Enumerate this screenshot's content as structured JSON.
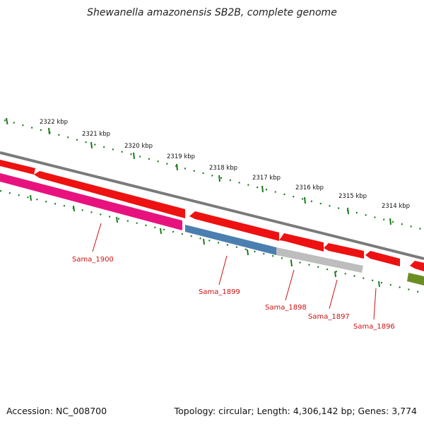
{
  "title": "Shewanella amazonensis SB2B, complete genome",
  "footer": {
    "accession": "Accession: NC_008700",
    "summary": "Topology: circular; Length: 4,306,142 bp; Genes: 3,774"
  },
  "axis_labels": [
    "2322 kbp",
    "2321 kbp",
    "2320 kbp",
    "2319 kbp",
    "2318 kbp",
    "2317 kbp",
    "2316 kbp",
    "2315 kbp",
    "2314 kbp"
  ],
  "genes": [
    {
      "label": "Sama_1900"
    },
    {
      "label": "Sama_1899"
    },
    {
      "label": "Sama_1898"
    },
    {
      "label": "Sama_1897"
    },
    {
      "label": "Sama_1896"
    }
  ],
  "colors": {
    "backbone": "#808080",
    "cds": "#ee1111",
    "cds_highlight": "#ff7070",
    "gene_1900": "#e8127e",
    "gene_1899": "#4a7fb0",
    "gene_1898": "#b8b8b8",
    "green_feature": "#6b8e23",
    "tick": "#1a7a1a",
    "label": "#cc1111"
  }
}
